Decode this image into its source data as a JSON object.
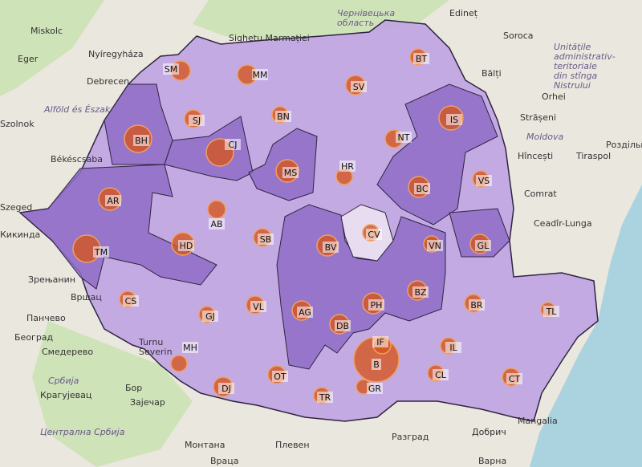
{
  "map": {
    "colors": {
      "land": "#eae7de",
      "sea": "#aad3df",
      "forest": "#cfe3b8",
      "very_light": "#e7dcf0",
      "light": "#c0a3e3",
      "dark": "#8e6cc6",
      "border": "#2e2440",
      "bubble": "#d4561f",
      "bubble_stroke": "#f0a060",
      "label_bg": "#ffffff"
    },
    "counties": [
      {
        "code": "SM",
        "shade": "light",
        "bubble": 12
      },
      {
        "code": "MM",
        "shade": "light",
        "bubble": 12
      },
      {
        "code": "BH",
        "shade": "dark",
        "bubble": 17
      },
      {
        "code": "SJ",
        "shade": "light",
        "bubble": 11
      },
      {
        "code": "CJ",
        "shade": "dark",
        "bubble": 17
      },
      {
        "code": "BN",
        "shade": "light",
        "bubble": 10
      },
      {
        "code": "MS",
        "shade": "dark",
        "bubble": 14
      },
      {
        "code": "AR",
        "shade": "dark",
        "bubble": 14
      },
      {
        "code": "AB",
        "shade": "light",
        "bubble": 11
      },
      {
        "code": "TM",
        "shade": "dark",
        "bubble": 17
      },
      {
        "code": "HD",
        "shade": "dark",
        "bubble": 14
      },
      {
        "code": "SB",
        "shade": "light",
        "bubble": 11
      },
      {
        "code": "BV",
        "shade": "dark",
        "bubble": 13
      },
      {
        "code": "CV",
        "shade": "very_light",
        "bubble": 10
      },
      {
        "code": "HR",
        "shade": "light",
        "bubble": 10
      },
      {
        "code": "BT",
        "shade": "light",
        "bubble": 10
      },
      {
        "code": "SV",
        "shade": "light",
        "bubble": 12
      },
      {
        "code": "IS",
        "shade": "dark",
        "bubble": 15
      },
      {
        "code": "NT",
        "shade": "light",
        "bubble": 11
      },
      {
        "code": "BC",
        "shade": "dark",
        "bubble": 13
      },
      {
        "code": "VS",
        "shade": "light",
        "bubble": 10
      },
      {
        "code": "VN",
        "shade": "light",
        "bubble": 10
      },
      {
        "code": "GL",
        "shade": "dark",
        "bubble": 12
      },
      {
        "code": "BZ",
        "shade": "dark",
        "bubble": 12
      },
      {
        "code": "PH",
        "shade": "dark",
        "bubble": 13
      },
      {
        "code": "DB",
        "shade": "dark",
        "bubble": 12
      },
      {
        "code": "AG",
        "shade": "dark",
        "bubble": 12
      },
      {
        "code": "VL",
        "shade": "light",
        "bubble": 11
      },
      {
        "code": "GJ",
        "shade": "light",
        "bubble": 10
      },
      {
        "code": "CS",
        "shade": "light",
        "bubble": 10
      },
      {
        "code": "MH",
        "shade": "light",
        "bubble": 10
      },
      {
        "code": "DJ",
        "shade": "light",
        "bubble": 12
      },
      {
        "code": "OT",
        "shade": "light",
        "bubble": 11
      },
      {
        "code": "TR",
        "shade": "light",
        "bubble": 10
      },
      {
        "code": "GR",
        "shade": "light",
        "bubble": 9
      },
      {
        "code": "B",
        "shade": "light",
        "bubble": 28
      },
      {
        "code": "IF",
        "shade": "light",
        "bubble": 11
      },
      {
        "code": "IL",
        "shade": "light",
        "bubble": 10
      },
      {
        "code": "CL",
        "shade": "light",
        "bubble": 10
      },
      {
        "code": "BR",
        "shade": "light",
        "bubble": 11
      },
      {
        "code": "TL",
        "shade": "light",
        "bubble": 9
      },
      {
        "code": "CT",
        "shade": "light",
        "bubble": 11
      }
    ],
    "cities": [
      "Miskolc",
      "Eger",
      "Nyíregyháza",
      "Debrecen",
      "Szolnok",
      "Békéscsaba",
      "Szeged",
      "Sighetu Marmației",
      "Edineț",
      "Soroca",
      "Bălți",
      "Orhei",
      "Strășeni",
      "Hîncești",
      "Tiraspol",
      "Роздільна",
      "Comrat",
      "Ceadîr-Lunga",
      "Кикинда",
      "Зрењанин",
      "Вршац",
      "Панчево",
      "Београд",
      "Смедерево",
      "Крагујевац",
      "Бор",
      "Зајечар",
      "Монтана",
      "Плевен",
      "Враца",
      "Разград",
      "Добрич",
      "Варна",
      "Mangalia",
      "Turnu Severin"
    ],
    "regions": [
      "Alföld és Észak",
      "Чернівецька область",
      "Unitățile administrativ-teritoriale din stînga Nistrului",
      "Moldova",
      "Србија",
      "Централна Србија"
    ]
  }
}
